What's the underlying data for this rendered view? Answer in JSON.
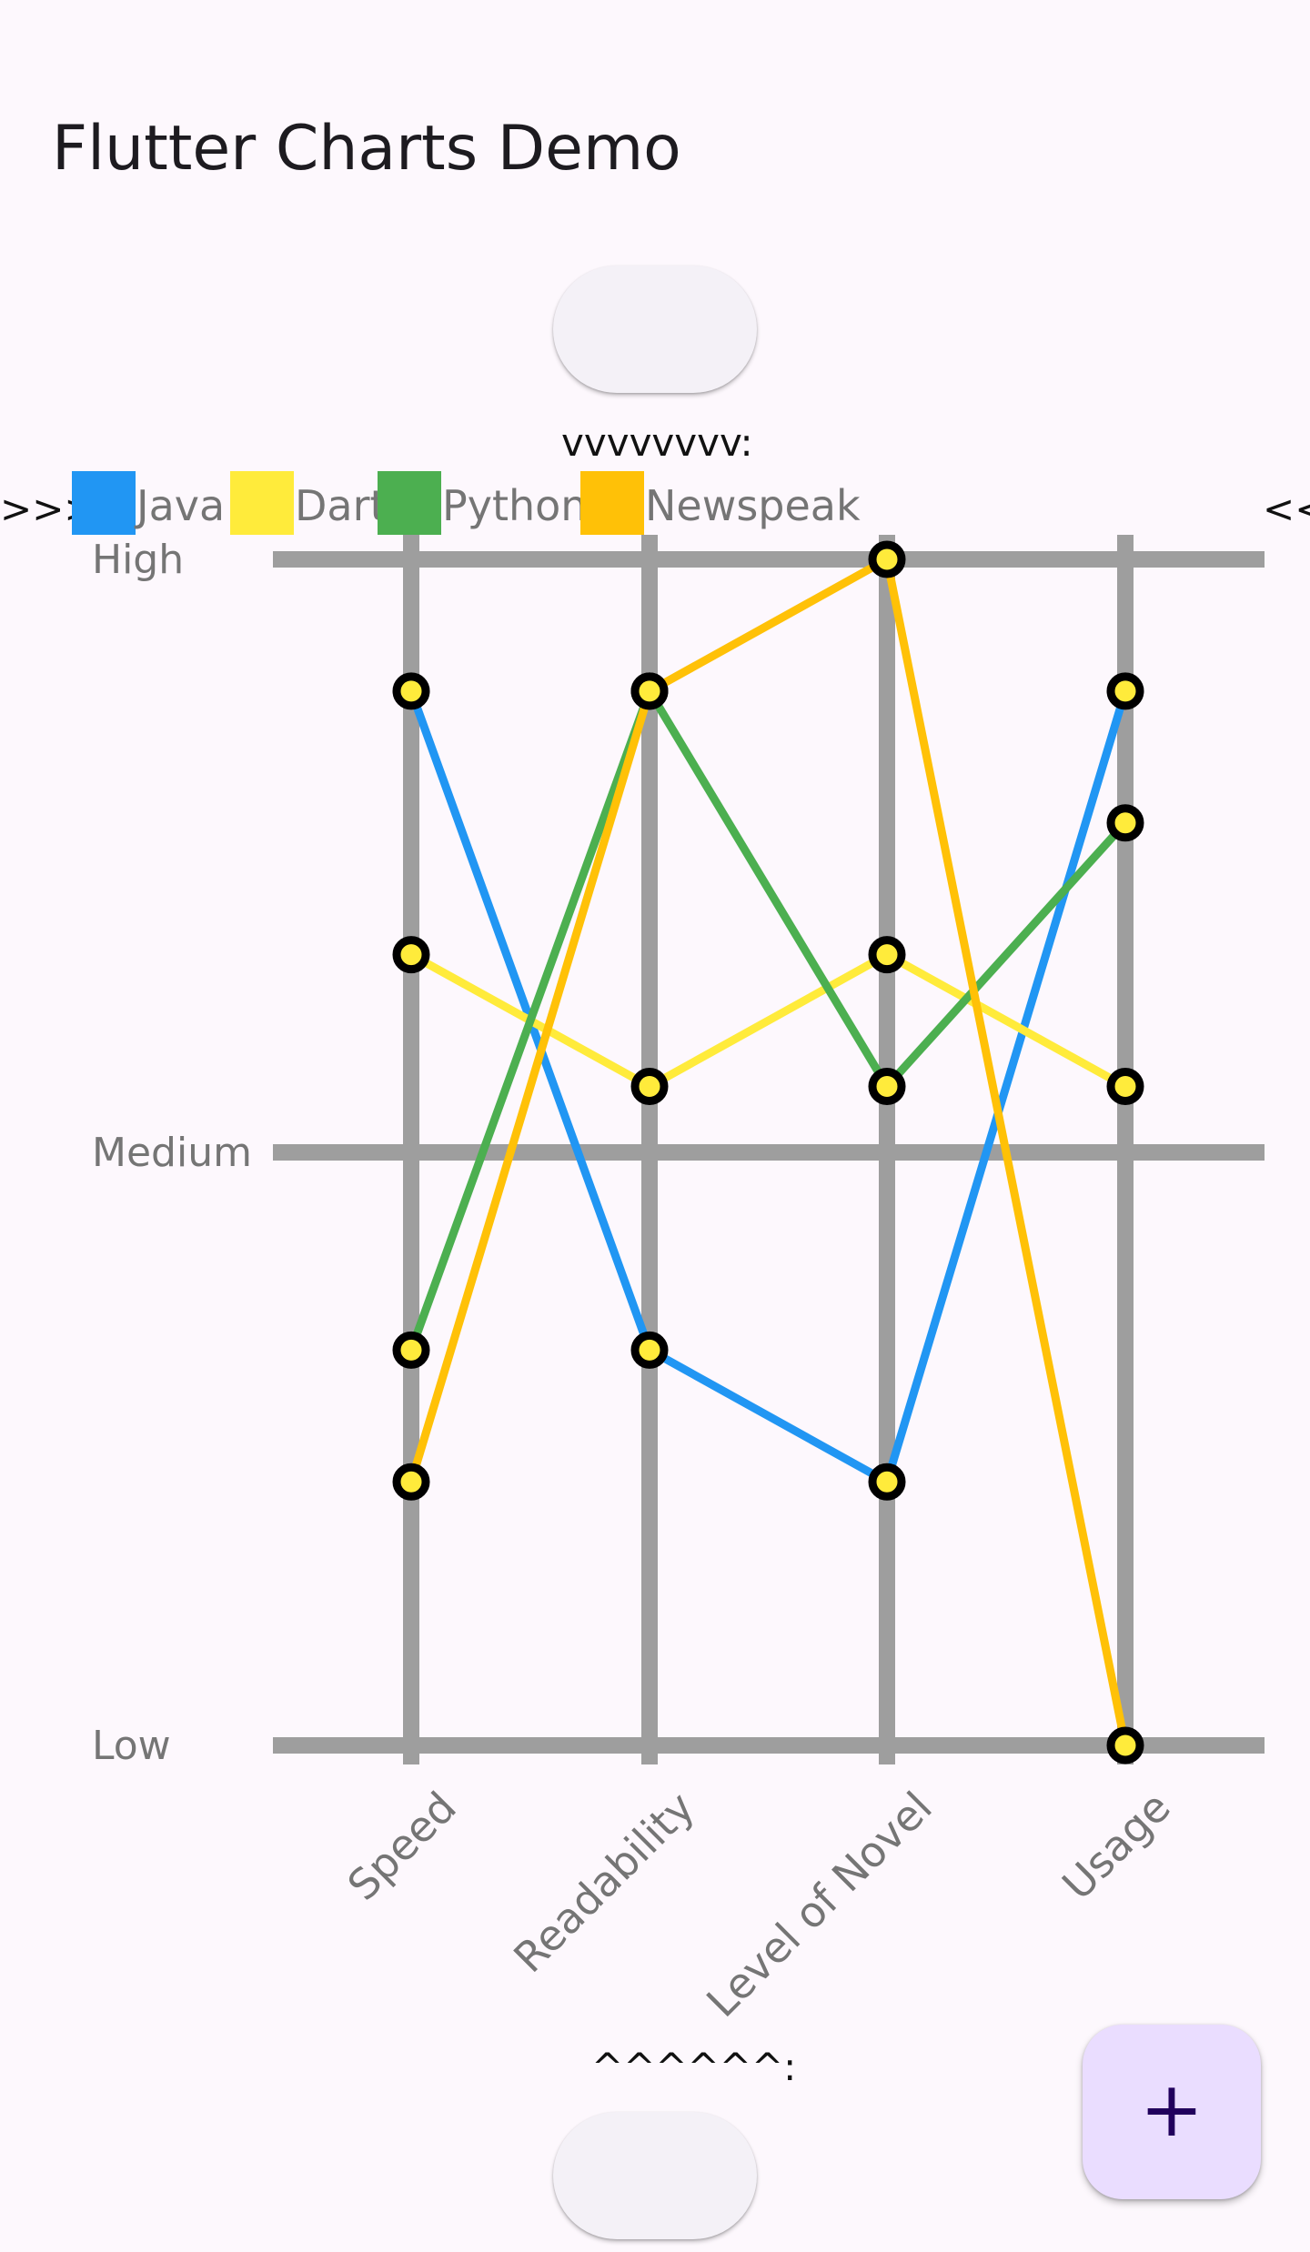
{
  "app": {
    "title": "Flutter Charts Demo"
  },
  "labels": {
    "above_chart": "vvvvvvvv:",
    "below_chart": "^^^^^^:",
    "left_arrows": ">>>",
    "right_arrows": "<<"
  },
  "fab": {
    "icon": "plus-icon",
    "symbol": "+"
  },
  "colors": {
    "grid": "#9e9e9e",
    "label": "#757575",
    "point_fill": "#ffeb3b",
    "point_stroke": "#000000"
  },
  "chart_data": {
    "type": "line",
    "categories": [
      "Speed",
      "Readability",
      "Level of Novel",
      "Usage"
    ],
    "y_labels": [
      "Low",
      "Medium",
      "High"
    ],
    "ylim": [
      0,
      9
    ],
    "grid": true,
    "legend_position": "top",
    "series": [
      {
        "name": "Java",
        "color": "#2196f3",
        "values": [
          8,
          3,
          2,
          8
        ]
      },
      {
        "name": "Dart",
        "color": "#ffeb3b",
        "values": [
          6,
          5,
          6,
          5
        ]
      },
      {
        "name": "Python",
        "color": "#4caf50",
        "values": [
          3,
          8,
          5,
          7
        ]
      },
      {
        "name": "Newspeak",
        "color": "#ffc107",
        "values": [
          2,
          8,
          9,
          0
        ]
      }
    ]
  }
}
